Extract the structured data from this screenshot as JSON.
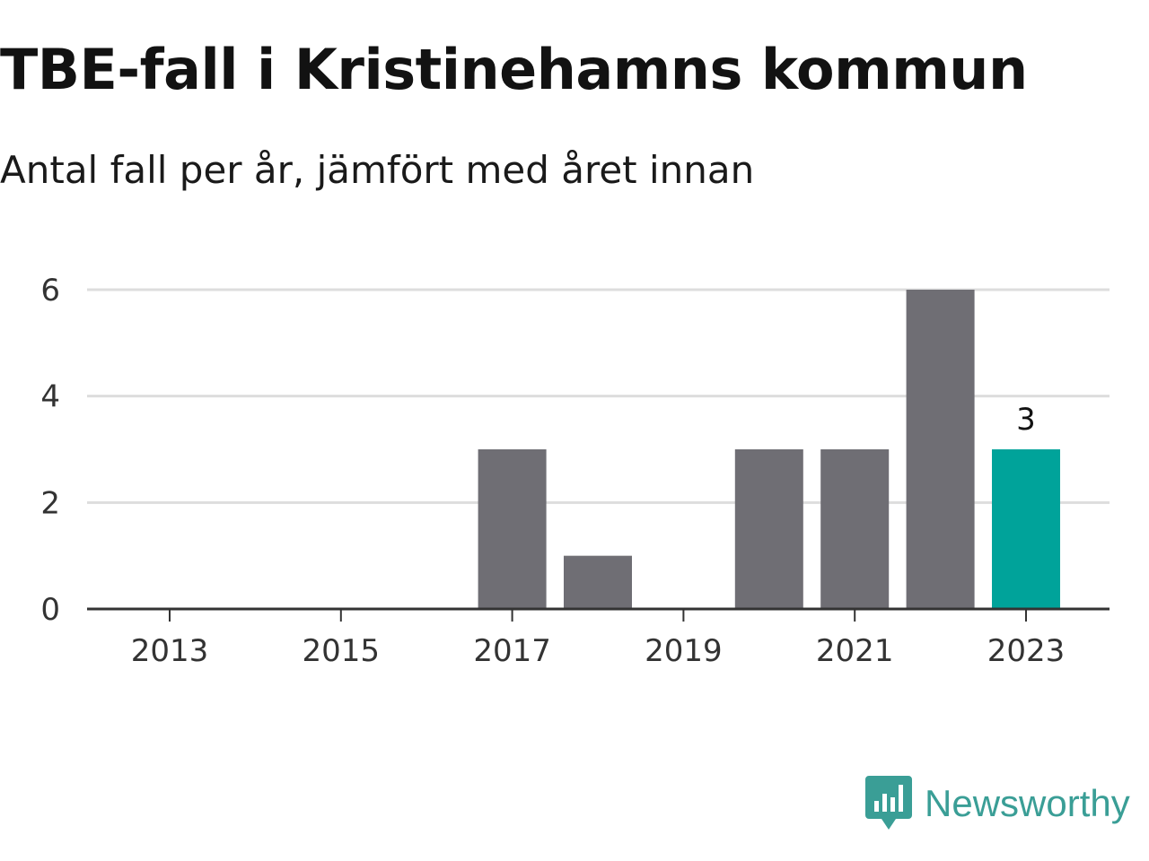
{
  "title": "TBE-fall i Kristinehamns kommun",
  "subtitle": "Antal fall per år, jämfört med året innan",
  "brand": {
    "name": "Newsworthy",
    "logo_icon": "newsworthy-chart-bubble-icon",
    "color": "#3a9e96"
  },
  "colors": {
    "bar": "#6f6e74",
    "highlight": "#00a39a",
    "grid": "#dddddd",
    "axis": "#333333"
  },
  "chart_data": {
    "type": "bar",
    "categories": [
      "2013",
      "2014",
      "2015",
      "2016",
      "2017",
      "2018",
      "2019",
      "2020",
      "2021",
      "2022",
      "2023"
    ],
    "values": [
      0,
      0,
      0,
      0,
      3,
      1,
      0,
      3,
      3,
      6,
      3
    ],
    "x_tick_labels": [
      "2013",
      "2015",
      "2017",
      "2019",
      "2021",
      "2023"
    ],
    "y_ticks": [
      0,
      2,
      4,
      6
    ],
    "ylim": [
      0,
      6
    ],
    "grid": true,
    "highlight_category": "2023",
    "data_labels": [
      {
        "category": "2023",
        "text": "3"
      }
    ],
    "xlabel": "",
    "ylabel": ""
  }
}
